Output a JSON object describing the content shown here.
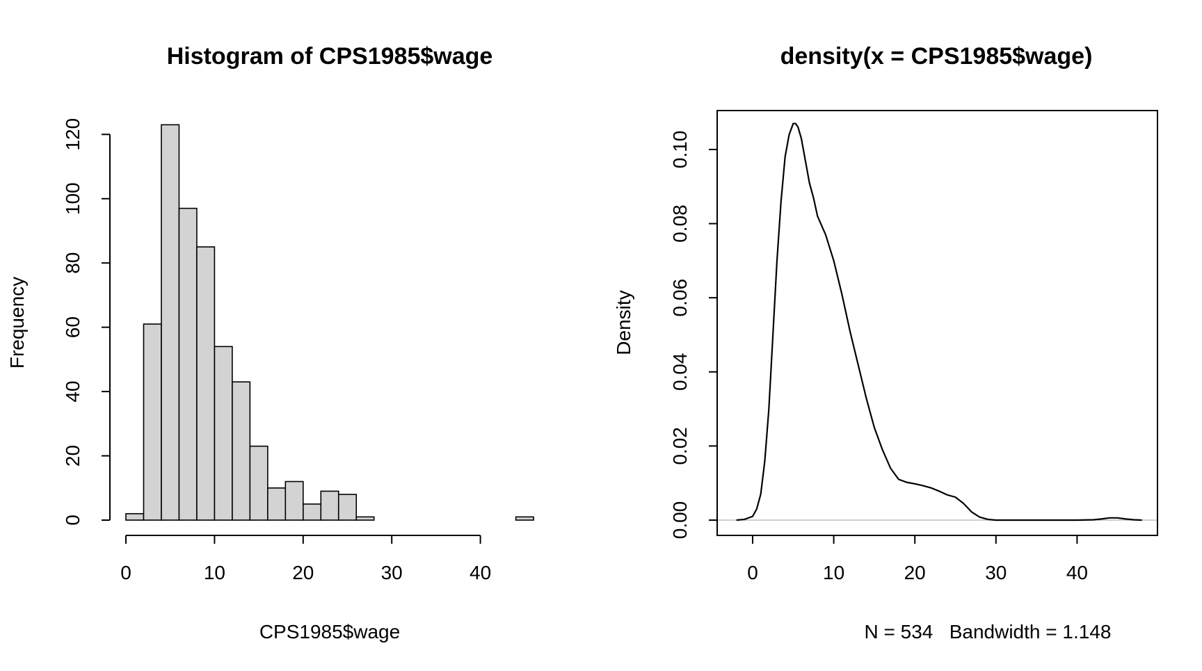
{
  "chart_data": [
    {
      "type": "bar",
      "title": "Histogram of CPS1985$wage",
      "xlabel": "CPS1985$wage",
      "ylabel": "Frequency",
      "bin_edges": [
        0,
        2,
        4,
        6,
        8,
        10,
        12,
        14,
        16,
        18,
        20,
        22,
        24,
        26,
        28,
        30,
        32,
        34,
        36,
        38,
        40,
        42,
        44,
        46
      ],
      "values": [
        2,
        61,
        123,
        97,
        85,
        54,
        43,
        23,
        10,
        12,
        5,
        9,
        8,
        1,
        0,
        0,
        0,
        0,
        0,
        0,
        0,
        0,
        1
      ],
      "xlim": [
        0,
        46
      ],
      "ylim": [
        0,
        123
      ],
      "x_ticks": [
        "0",
        "10",
        "20",
        "30",
        "40"
      ],
      "y_ticks": [
        "0",
        "20",
        "40",
        "60",
        "80",
        "100",
        "120"
      ],
      "bar_color": "#d3d3d3",
      "grid": false
    },
    {
      "type": "line",
      "title": "density(x = CPS1985$wage)",
      "xlabel": "N = 534   Bandwidth = 1.148",
      "ylabel": "Density",
      "x": [
        -2.0,
        -1.0,
        0.0,
        0.5,
        1.0,
        1.5,
        2.0,
        2.5,
        3.0,
        3.5,
        4.0,
        4.5,
        5.0,
        5.3,
        5.6,
        6.0,
        6.5,
        7.0,
        7.5,
        8.0,
        9.0,
        10.0,
        11.0,
        12.0,
        13.0,
        14.0,
        15.0,
        16.0,
        17.0,
        18.0,
        19.0,
        20.0,
        21.0,
        22.0,
        23.0,
        24.0,
        25.0,
        26.0,
        27.0,
        28.0,
        29.0,
        30.0,
        35.0,
        40.0,
        42.0,
        43.0,
        44.0,
        45.0,
        46.0,
        47.0,
        48.0
      ],
      "y": [
        0.0,
        0.0002,
        0.001,
        0.003,
        0.007,
        0.016,
        0.03,
        0.05,
        0.07,
        0.086,
        0.098,
        0.104,
        0.107,
        0.107,
        0.106,
        0.103,
        0.097,
        0.091,
        0.087,
        0.082,
        0.077,
        0.07,
        0.061,
        0.051,
        0.042,
        0.033,
        0.025,
        0.019,
        0.014,
        0.011,
        0.0102,
        0.0098,
        0.0093,
        0.0087,
        0.0078,
        0.0068,
        0.0062,
        0.0045,
        0.0022,
        0.0008,
        0.0002,
        0.0,
        0.0,
        0.0,
        0.0001,
        0.0003,
        0.0006,
        0.0006,
        0.0003,
        0.0001,
        0.0
      ],
      "xlim": [
        -3.2,
        51.2
      ],
      "ylim": [
        -0.0042,
        0.1104
      ],
      "x_ticks": [
        "0",
        "10",
        "20",
        "30",
        "40"
      ],
      "y_ticks": [
        "0.00",
        "0.02",
        "0.04",
        "0.06",
        "0.08",
        "0.10"
      ],
      "baseline_color": "#bebebe",
      "grid": false
    }
  ]
}
